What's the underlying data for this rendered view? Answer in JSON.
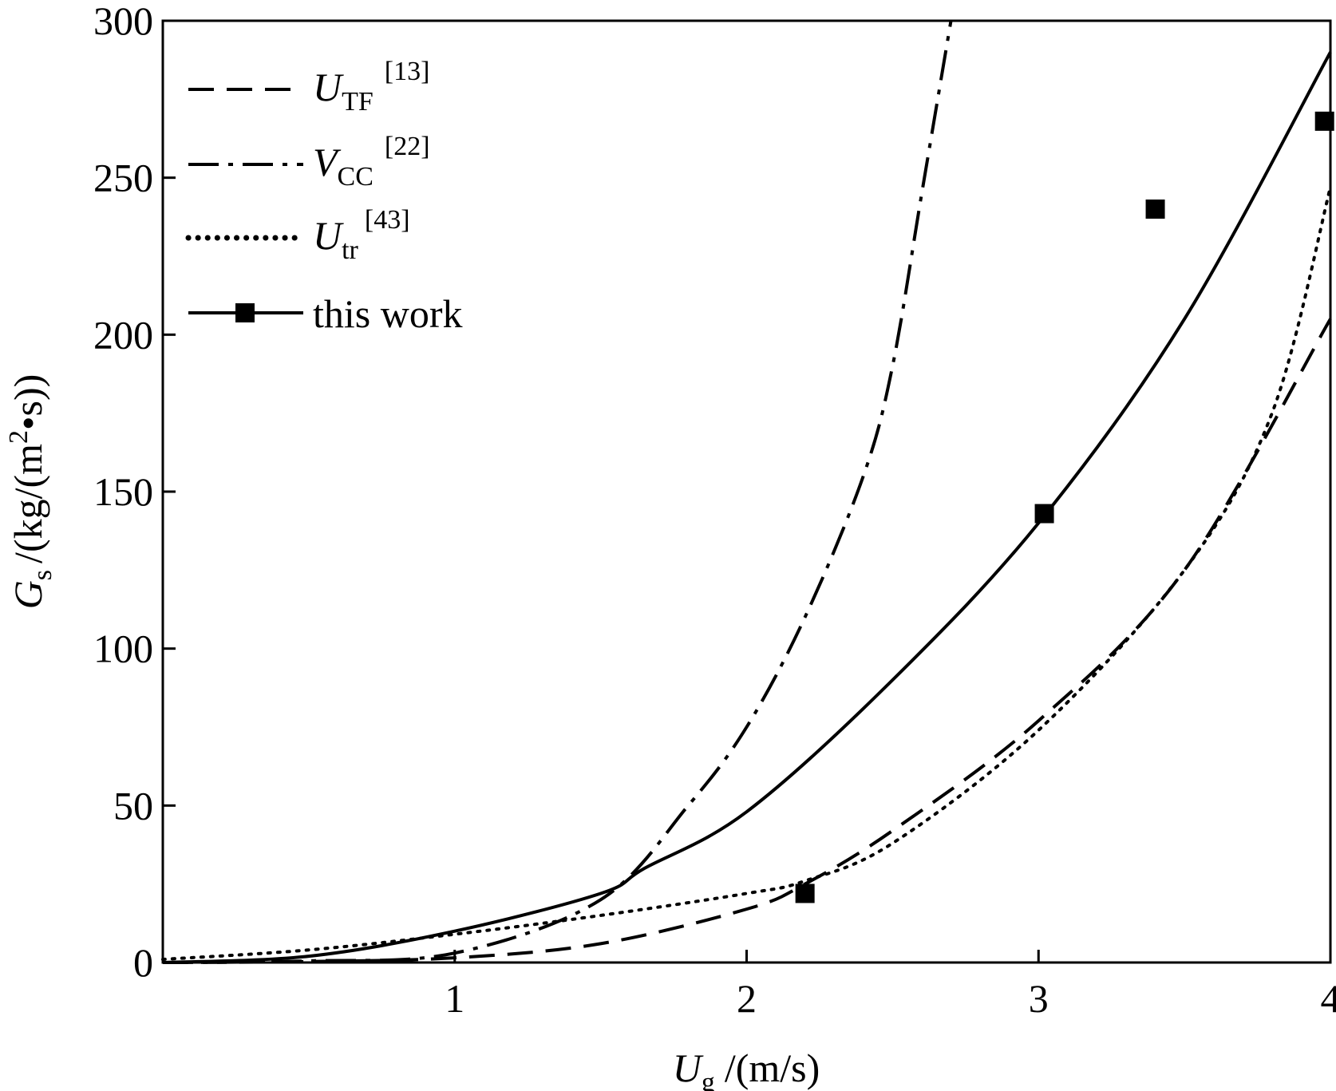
{
  "chart_data": {
    "type": "line",
    "x_axis": {
      "label_main": "U",
      "label_sub": "g",
      "label_unit": "/(m/s)",
      "min": 0,
      "max": 4,
      "ticks": [
        1,
        2,
        3,
        4
      ],
      "tick_labels": [
        "1",
        "2",
        "3",
        "4"
      ]
    },
    "y_axis": {
      "label_main": "G",
      "label_sub": "s",
      "label_unit_pre": "/(kg/(m",
      "label_unit_sup": "2",
      "label_unit_post": "•s))",
      "min": 0,
      "max": 300,
      "ticks": [
        0,
        50,
        100,
        150,
        200,
        250,
        300
      ],
      "tick_labels": [
        "0",
        "50",
        "100",
        "150",
        "200",
        "250",
        "300"
      ]
    },
    "grid": false,
    "legend_position": "top-left",
    "series": [
      {
        "key": "utf",
        "legend_main": "U",
        "legend_sub": "TF",
        "legend_ref": "[13]",
        "style": "dashed",
        "points": [
          [
            0,
            0
          ],
          [
            0.5,
            0.3
          ],
          [
            1.0,
            1.5
          ],
          [
            1.5,
            6
          ],
          [
            2.0,
            17
          ],
          [
            2.2,
            25
          ],
          [
            2.5,
            42
          ],
          [
            3.0,
            77
          ],
          [
            3.5,
            125
          ],
          [
            4.0,
            205
          ]
        ]
      },
      {
        "key": "vcc",
        "legend_main": "V",
        "legend_sub": "CC",
        "legend_ref": "[22]",
        "style": "dash-dot",
        "points": [
          [
            0,
            0
          ],
          [
            0.5,
            0.5
          ],
          [
            1.0,
            3
          ],
          [
            1.5,
            20
          ],
          [
            1.8,
            50
          ],
          [
            2.0,
            75
          ],
          [
            2.2,
            110
          ],
          [
            2.4,
            155
          ],
          [
            2.5,
            190
          ],
          [
            2.6,
            245
          ],
          [
            2.7,
            300
          ]
        ]
      },
      {
        "key": "utr",
        "legend_main": "U",
        "legend_sub": "tr",
        "legend_ref": "[43]",
        "style": "dotted",
        "points": [
          [
            0,
            1
          ],
          [
            0.5,
            4
          ],
          [
            1.0,
            9
          ],
          [
            1.5,
            15
          ],
          [
            2.0,
            22
          ],
          [
            2.2,
            26
          ],
          [
            2.5,
            38
          ],
          [
            3.0,
            74
          ],
          [
            3.5,
            125
          ],
          [
            3.8,
            175
          ],
          [
            4.0,
            247
          ]
        ]
      },
      {
        "key": "this",
        "legend_main": "this work",
        "style": "solid",
        "points": [
          [
            0,
            0
          ],
          [
            0.5,
            2
          ],
          [
            1.0,
            10
          ],
          [
            1.5,
            22
          ],
          [
            1.65,
            30
          ],
          [
            2.0,
            48
          ],
          [
            2.5,
            90
          ],
          [
            3.0,
            140
          ],
          [
            3.5,
            205
          ],
          [
            4.0,
            290
          ]
        ],
        "markers": [
          [
            2.2,
            22
          ],
          [
            3.02,
            143
          ],
          [
            3.4,
            240
          ],
          [
            3.98,
            268
          ]
        ]
      }
    ]
  }
}
